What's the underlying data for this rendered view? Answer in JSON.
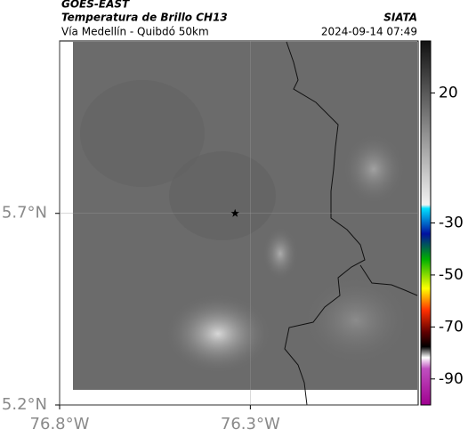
{
  "header": {
    "title": "GOES-EAST",
    "subtitle": "Temperatura de Brillo CH13",
    "region": "Vía Medellín - Quibdó 50km",
    "source": "SIATA",
    "timestamp": "2024-09-14 07:49"
  },
  "map": {
    "xlim": [
      -76.8,
      -75.86
    ],
    "ylim": [
      5.2,
      6.15
    ],
    "xticks": [
      {
        "value": -76.8,
        "label": "76.8°W"
      },
      {
        "value": -76.3,
        "label": "76.3°W"
      }
    ],
    "yticks": [
      {
        "value": 5.2,
        "label": "5.2°N"
      },
      {
        "value": 5.7,
        "label": "5.7°N"
      }
    ],
    "marker": {
      "lon": -76.34,
      "lat": 5.7
    }
  },
  "colorbar": {
    "lim": [
      -100,
      40
    ],
    "ticks": [
      20,
      -30,
      -50,
      -70,
      -90
    ]
  }
}
